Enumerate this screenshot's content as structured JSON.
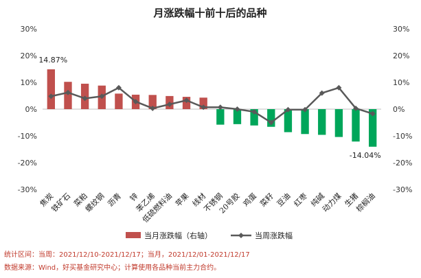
{
  "chart_data": {
    "type": "bar+line",
    "title": "月涨跌幅十前十后的品种",
    "categories": [
      "焦炭",
      "铁矿石",
      "菜粕",
      "螺纹钢",
      "沥青",
      "锌",
      "苯乙烯",
      "低硫燃料油",
      "苹果",
      "线材",
      "不锈钢",
      "20号胶",
      "鸡蛋",
      "菜籽",
      "豆油",
      "红枣",
      "纯碱",
      "动力煤",
      "生猪",
      "棕榈油"
    ],
    "series": [
      {
        "name": "当月涨跌幅（右轴）",
        "kind": "bar",
        "axis": "right",
        "color_positive": "#c0504d",
        "color_negative": "#00a65a",
        "values": [
          14.87,
          10.2,
          9.5,
          8.8,
          5.8,
          5.4,
          5.3,
          4.9,
          4.6,
          4.3,
          -5.8,
          -5.6,
          -6.1,
          -6.6,
          -8.6,
          -9.3,
          -9.6,
          -10.4,
          -12.1,
          -14.04
        ]
      },
      {
        "name": "当周涨跌幅",
        "kind": "line",
        "axis": "left",
        "color": "#595959",
        "values": [
          4.8,
          6.2,
          4.0,
          4.8,
          8.0,
          2.8,
          0.3,
          1.8,
          3.3,
          0.7,
          0.7,
          0.0,
          -1.0,
          -5.0,
          -0.2,
          -0.2,
          6.0,
          8.0,
          0.3,
          -1.7
        ]
      }
    ],
    "data_labels": [
      "14.87%",
      "-14.04%"
    ],
    "ylim_left": [
      -30,
      30
    ],
    "ylim_right": [
      -30,
      30
    ],
    "yticks": [
      "-30%",
      "-20%",
      "-10%",
      "0%",
      "10%",
      "20%",
      "30%"
    ],
    "grid": false,
    "legend_position": "bottom"
  },
  "footnotes": {
    "line1": "统计区间：当周：2021/12/10-2021/12/17；当月，2021/12/01-2021/12/17",
    "line2": "数据来源：Wind，好买基金研究中心；计算使用各品种当前主力合约。"
  }
}
